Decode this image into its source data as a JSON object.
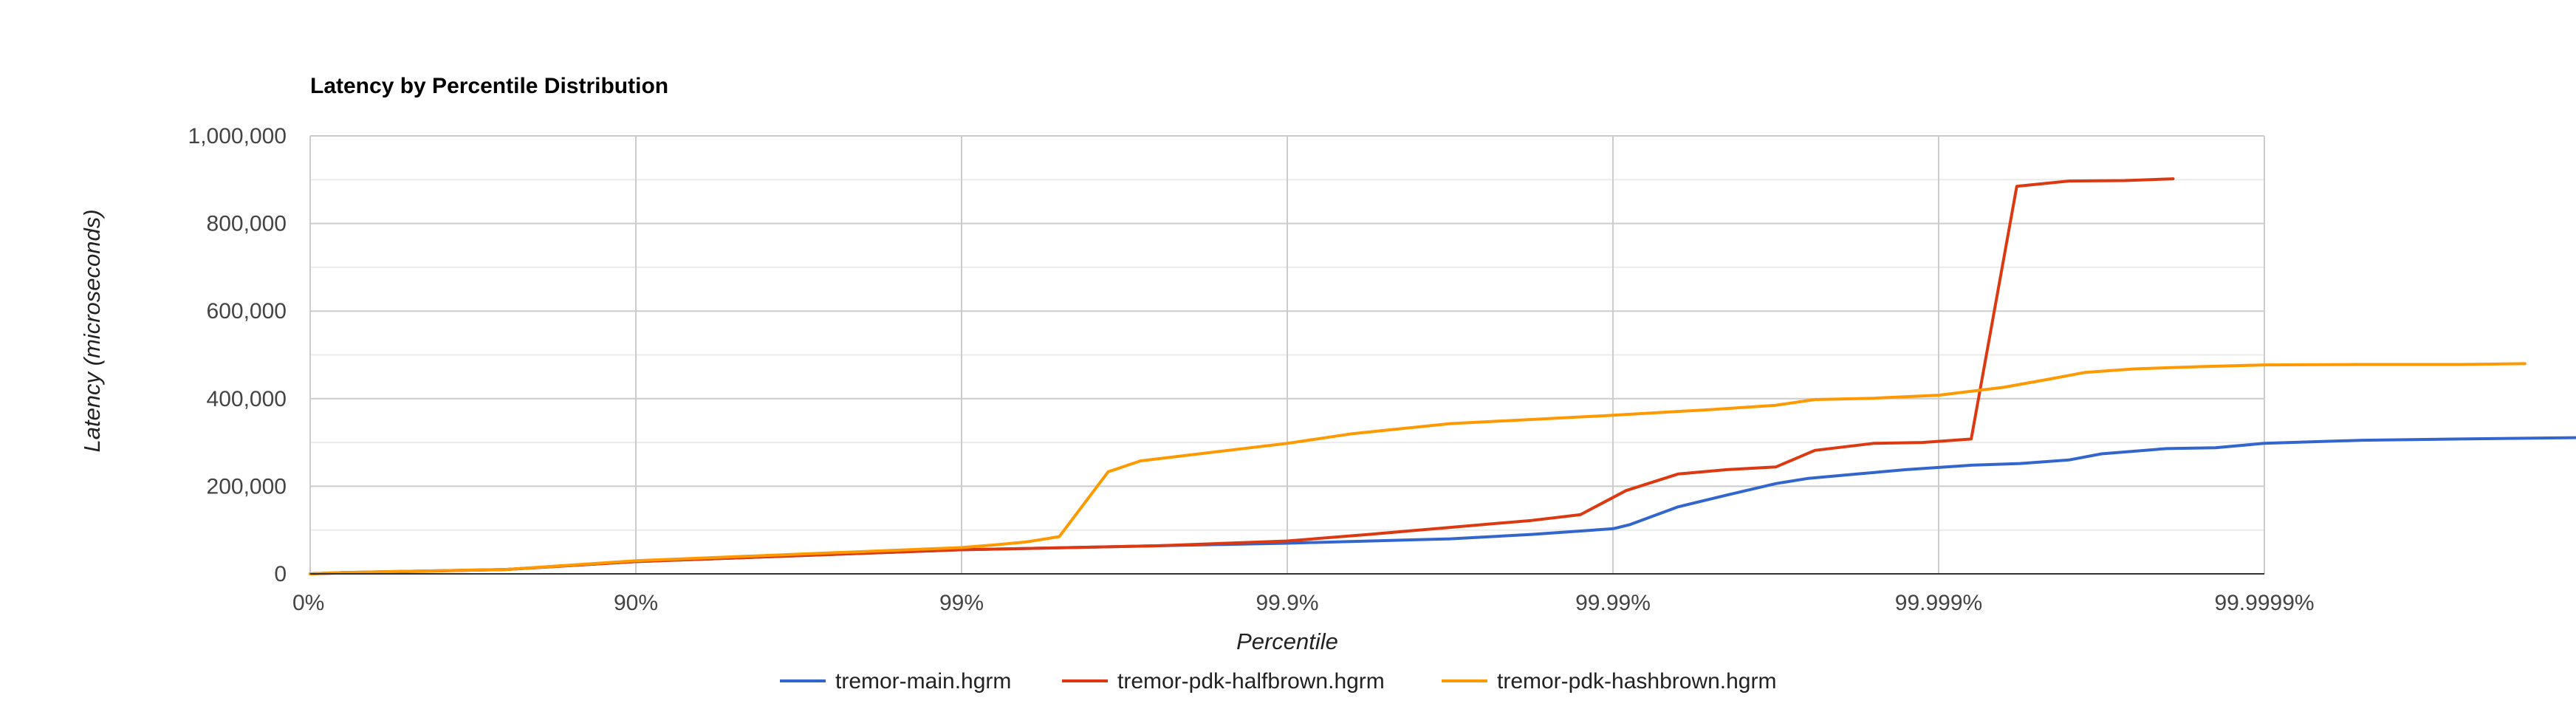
{
  "chart_data": {
    "type": "line",
    "title": "Latency by Percentile Distribution",
    "xlabel": "Percentile",
    "ylabel": "Latency (microseconds)",
    "x_scale": "log-percentile",
    "x_ticks": [
      "0%",
      "90%",
      "99%",
      "99.9%",
      "99.99%",
      "99.999%",
      "99.9999%"
    ],
    "y_ticks": [
      "0",
      "200,000",
      "400,000",
      "600,000",
      "800,000",
      "1,000,000"
    ],
    "ylim": [
      0,
      1000000
    ],
    "grid": true,
    "legend_position": "bottom",
    "series": [
      {
        "name": "tremor-main.hgrm",
        "color": "#3366cc",
        "points": [
          [
            0,
            0
          ],
          [
            0.1,
            3000
          ],
          [
            0.6,
            10000
          ],
          [
            1.0,
            28000
          ],
          [
            2.0,
            55000
          ],
          [
            2.6,
            64000
          ],
          [
            3.0,
            70000
          ],
          [
            3.5,
            80000
          ],
          [
            3.75,
            90000
          ],
          [
            4.0,
            103000
          ],
          [
            4.05,
            112000
          ],
          [
            4.2,
            153000
          ],
          [
            4.35,
            180000
          ],
          [
            4.5,
            206000
          ],
          [
            4.6,
            218000
          ],
          [
            4.75,
            228000
          ],
          [
            4.9,
            238000
          ],
          [
            5.1,
            248000
          ],
          [
            5.25,
            252000
          ],
          [
            5.4,
            260000
          ],
          [
            5.5,
            274000
          ],
          [
            5.7,
            286000
          ],
          [
            5.85,
            288000
          ],
          [
            6.0,
            298000
          ],
          [
            6.3,
            305000
          ],
          [
            6.6,
            308000
          ],
          [
            7.2,
            311000
          ],
          [
            7.9,
            311000
          ]
        ]
      },
      {
        "name": "tremor-pdk-halfbrown.hgrm",
        "color": "#dc3912",
        "points": [
          [
            0,
            0
          ],
          [
            0.1,
            2000
          ],
          [
            0.6,
            10000
          ],
          [
            1.0,
            28000
          ],
          [
            2.0,
            55000
          ],
          [
            2.6,
            64000
          ],
          [
            3.0,
            75000
          ],
          [
            3.25,
            90000
          ],
          [
            3.5,
            106000
          ],
          [
            3.75,
            122000
          ],
          [
            3.9,
            135000
          ],
          [
            4.04,
            190000
          ],
          [
            4.2,
            228000
          ],
          [
            4.35,
            238000
          ],
          [
            4.5,
            244000
          ],
          [
            4.62,
            282000
          ],
          [
            4.8,
            298000
          ],
          [
            4.95,
            300000
          ],
          [
            5.1,
            308000
          ],
          [
            5.24,
            885000
          ],
          [
            5.4,
            897000
          ],
          [
            5.57,
            898000
          ],
          [
            5.72,
            902000
          ]
        ]
      },
      {
        "name": "tremor-pdk-hashbrown.hgrm",
        "color": "#ff9900",
        "points": [
          [
            0,
            0
          ],
          [
            0.1,
            3000
          ],
          [
            0.6,
            10000
          ],
          [
            1.0,
            30000
          ],
          [
            2.0,
            60000
          ],
          [
            2.1,
            66000
          ],
          [
            2.2,
            73000
          ],
          [
            2.3,
            85000
          ],
          [
            2.45,
            233000
          ],
          [
            2.55,
            258000
          ],
          [
            3.0,
            298000
          ],
          [
            3.2,
            320000
          ],
          [
            3.5,
            343000
          ],
          [
            4.0,
            362000
          ],
          [
            4.3,
            375000
          ],
          [
            4.5,
            385000
          ],
          [
            4.62,
            398000
          ],
          [
            4.8,
            401000
          ],
          [
            5.0,
            408000
          ],
          [
            5.2,
            426000
          ],
          [
            5.26,
            434000
          ],
          [
            5.35,
            446000
          ],
          [
            5.45,
            460000
          ],
          [
            5.6,
            468000
          ],
          [
            5.8,
            473000
          ],
          [
            6.0,
            477000
          ],
          [
            6.3,
            478000
          ],
          [
            6.6,
            478000
          ],
          [
            6.8,
            480000
          ]
        ]
      }
    ]
  }
}
